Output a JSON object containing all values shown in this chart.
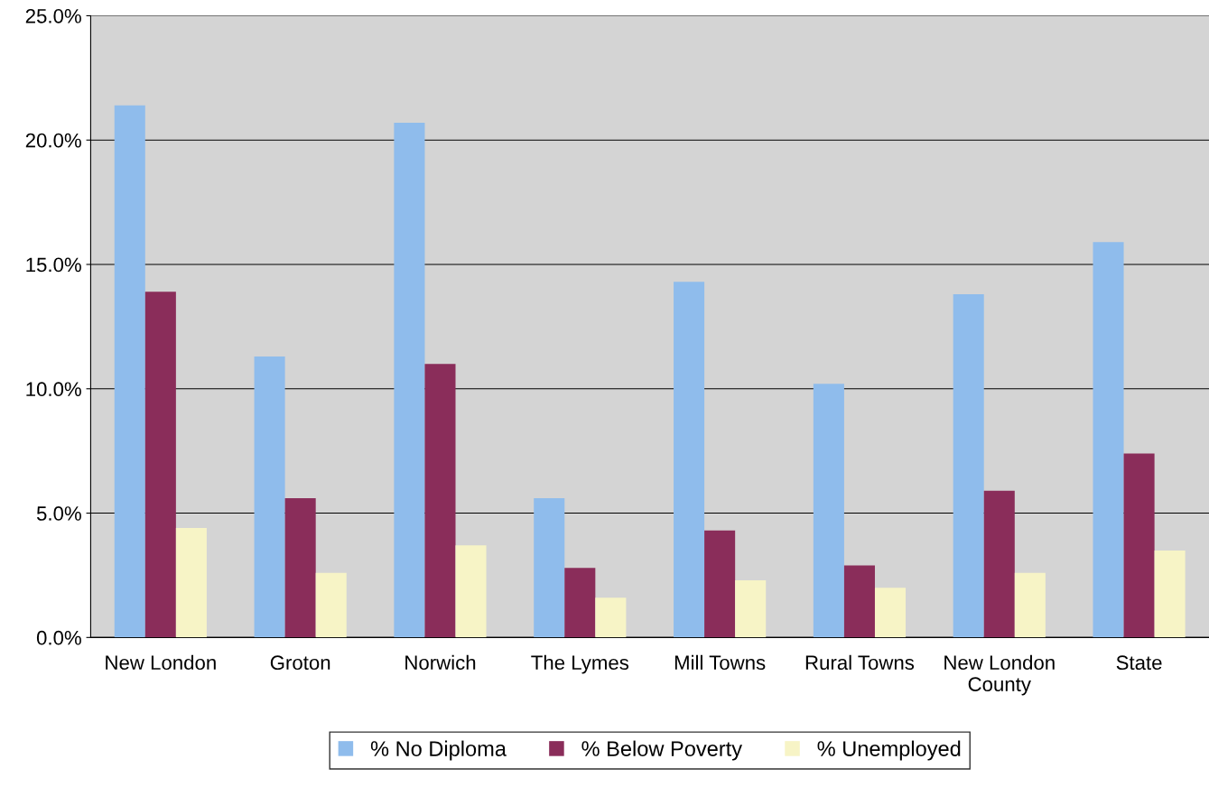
{
  "chart_data": {
    "type": "bar",
    "categories": [
      "New London",
      "Groton",
      "Norwich",
      "The Lymes",
      "Mill Towns",
      "Rural Towns",
      "New London\nCounty",
      "State"
    ],
    "series": [
      {
        "name": "% No Diploma",
        "color": "#8fbcec",
        "values": [
          21.4,
          11.3,
          20.7,
          5.6,
          14.3,
          10.2,
          13.8,
          15.9
        ]
      },
      {
        "name": "% Below Poverty",
        "color": "#8a2d5a",
        "values": [
          13.9,
          5.6,
          11.0,
          2.8,
          4.3,
          2.9,
          5.9,
          7.4
        ]
      },
      {
        "name": "% Unemployed",
        "color": "#f7f4c6",
        "values": [
          4.4,
          2.6,
          3.7,
          1.6,
          2.3,
          2.0,
          2.6,
          3.5
        ]
      }
    ],
    "ylim": [
      0,
      25
    ],
    "yticks": [
      {
        "value": 0,
        "label": "0.0%"
      },
      {
        "value": 5,
        "label": "5.0%"
      },
      {
        "value": 10,
        "label": "10.0%"
      },
      {
        "value": 15,
        "label": "15.0%"
      },
      {
        "value": 20,
        "label": "20.0%"
      },
      {
        "value": 25,
        "label": "25.0%"
      }
    ],
    "grid": "y",
    "legend": "bottom"
  }
}
